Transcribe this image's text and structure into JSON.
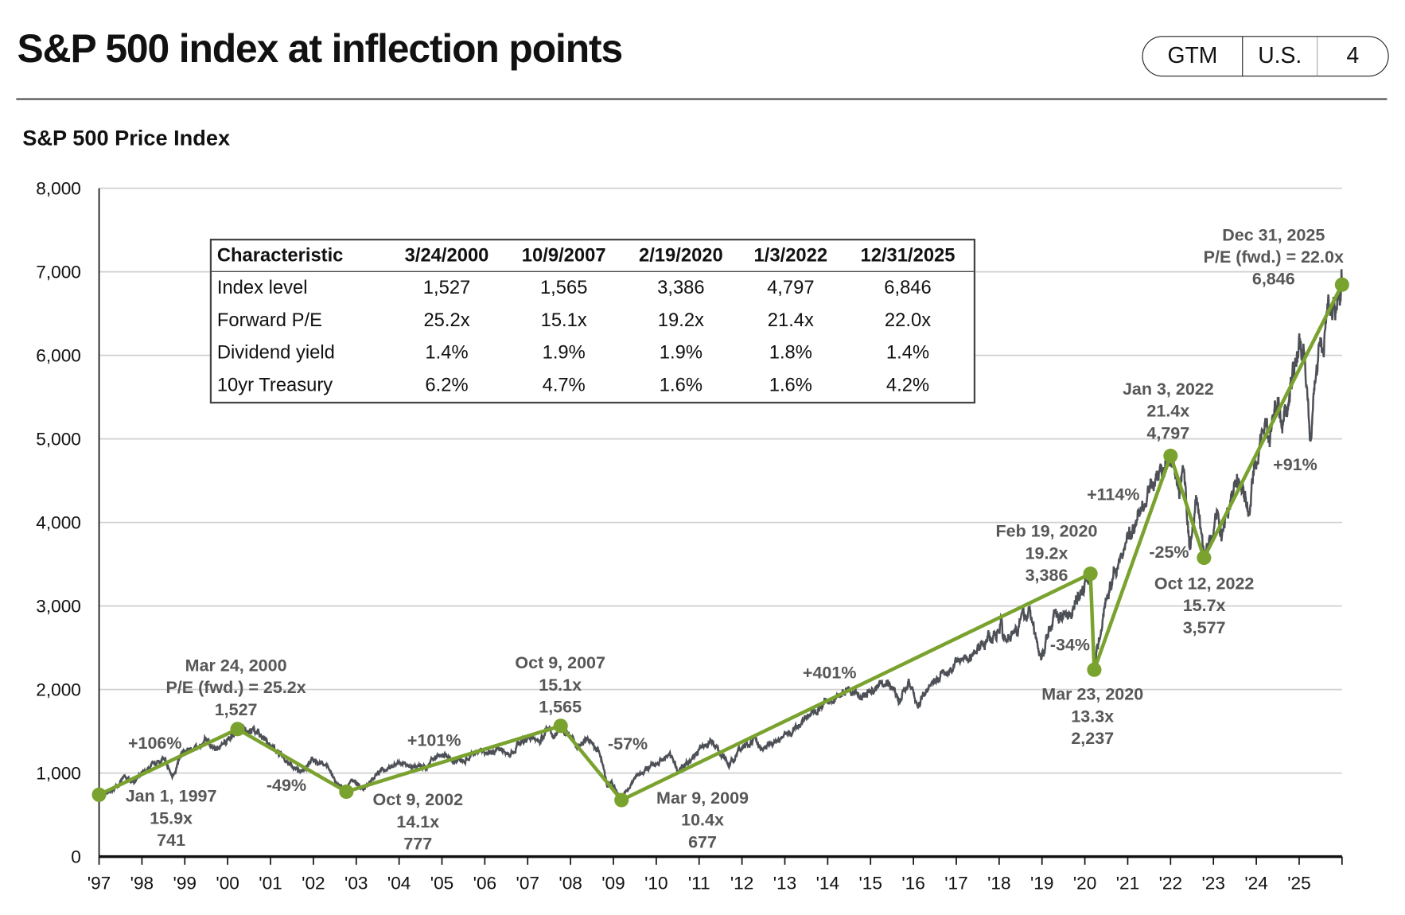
{
  "header": {
    "title": "S&P 500 index at inflection points",
    "badge": [
      "GTM",
      "U.S.",
      "4"
    ]
  },
  "colors": {
    "accent": "#7aa22e",
    "price_line": "#4d5056",
    "annotation_text": "#575757",
    "grid": "#d0d0d0"
  },
  "chart_data": {
    "type": "line",
    "title": "S&P 500 Price Index",
    "xlabel": "",
    "ylabel": "",
    "ylim": [
      0,
      8000
    ],
    "xlim": [
      1997,
      2026
    ],
    "y_ticks": [
      "0",
      "1,000",
      "2,000",
      "3,000",
      "4,000",
      "5,000",
      "6,000",
      "7,000",
      "8,000"
    ],
    "x_ticks": [
      "'97",
      "'98",
      "'99",
      "'00",
      "'01",
      "'02",
      "'03",
      "'04",
      "'05",
      "'06",
      "'07",
      "'08",
      "'09",
      "'10",
      "'11",
      "'12",
      "'13",
      "'14",
      "'15",
      "'16",
      "'17",
      "'18",
      "'19",
      "'20",
      "'21",
      "'22",
      "'23",
      "'24",
      "'25"
    ],
    "grid": true,
    "price_series": [
      [
        1997.0,
        741
      ],
      [
        1997.3,
        790
      ],
      [
        1997.6,
        950
      ],
      [
        1997.8,
        900
      ],
      [
        1998.5,
        1180
      ],
      [
        1998.7,
        960
      ],
      [
        1998.95,
        1230
      ],
      [
        1999.5,
        1380
      ],
      [
        1999.8,
        1300
      ],
      [
        2000.23,
        1527
      ],
      [
        2000.7,
        1500
      ],
      [
        2001.0,
        1320
      ],
      [
        2001.7,
        1000
      ],
      [
        2001.95,
        1150
      ],
      [
        2002.3,
        1100
      ],
      [
        2002.55,
        850
      ],
      [
        2002.77,
        777
      ],
      [
        2002.9,
        930
      ],
      [
        2003.2,
        800
      ],
      [
        2003.5,
        1000
      ],
      [
        2003.95,
        1110
      ],
      [
        2004.6,
        1080
      ],
      [
        2004.95,
        1210
      ],
      [
        2005.3,
        1150
      ],
      [
        2005.95,
        1250
      ],
      [
        2006.4,
        1300
      ],
      [
        2006.6,
        1230
      ],
      [
        2006.95,
        1420
      ],
      [
        2007.2,
        1400
      ],
      [
        2007.5,
        1540
      ],
      [
        2007.6,
        1430
      ],
      [
        2007.77,
        1565
      ],
      [
        2008.2,
        1300
      ],
      [
        2008.4,
        1420
      ],
      [
        2008.7,
        1200
      ],
      [
        2008.85,
        850
      ],
      [
        2008.95,
        900
      ],
      [
        2009.19,
        677
      ],
      [
        2009.5,
        950
      ],
      [
        2009.95,
        1115
      ],
      [
        2010.3,
        1210
      ],
      [
        2010.5,
        1030
      ],
      [
        2010.95,
        1260
      ],
      [
        2011.3,
        1360
      ],
      [
        2011.7,
        1100
      ],
      [
        2011.95,
        1260
      ],
      [
        2012.3,
        1410
      ],
      [
        2012.45,
        1280
      ],
      [
        2012.95,
        1430
      ],
      [
        2013.5,
        1650
      ],
      [
        2013.95,
        1850
      ],
      [
        2014.5,
        1980
      ],
      [
        2014.8,
        1870
      ],
      [
        2015.4,
        2120
      ],
      [
        2015.65,
        1870
      ],
      [
        2015.9,
        2090
      ],
      [
        2016.1,
        1830
      ],
      [
        2016.5,
        2100
      ],
      [
        2016.95,
        2260
      ],
      [
        2017.95,
        2690
      ],
      [
        2018.05,
        2870
      ],
      [
        2018.1,
        2600
      ],
      [
        2018.7,
        2930
      ],
      [
        2018.98,
        2350
      ],
      [
        2019.3,
        2940
      ],
      [
        2019.6,
        2850
      ],
      [
        2019.95,
        3230
      ],
      [
        2020.13,
        3386
      ],
      [
        2020.22,
        2237
      ],
      [
        2020.5,
        3100
      ],
      [
        2020.7,
        3400
      ],
      [
        2020.95,
        3750
      ],
      [
        2021.5,
        4350
      ],
      [
        2021.95,
        4790
      ],
      [
        2022.0,
        4797
      ],
      [
        2022.2,
        4300
      ],
      [
        2022.3,
        4600
      ],
      [
        2022.45,
        3670
      ],
      [
        2022.6,
        4280
      ],
      [
        2022.78,
        3577
      ],
      [
        2022.95,
        3850
      ],
      [
        2023.1,
        4130
      ],
      [
        2023.2,
        3850
      ],
      [
        2023.55,
        4580
      ],
      [
        2023.82,
        4120
      ],
      [
        2023.95,
        4770
      ],
      [
        2024.25,
        5250
      ],
      [
        2024.3,
        5000
      ],
      [
        2024.5,
        5500
      ],
      [
        2024.6,
        5200
      ],
      [
        2024.95,
        6050
      ],
      [
        2025.1,
        6140
      ],
      [
        2025.27,
        4980
      ],
      [
        2025.4,
        5800
      ],
      [
        2025.6,
        6300
      ],
      [
        2025.8,
        6700
      ],
      [
        2025.85,
        6550
      ],
      [
        2026.0,
        6846
      ]
    ],
    "inflection_points": [
      {
        "t": 1997.0,
        "value": 741,
        "lines": [
          "Jan 1, 1997",
          "15.9x",
          "741"
        ]
      },
      {
        "t": 2000.23,
        "value": 1527,
        "lines": [
          "Mar 24, 2000",
          "P/E (fwd.) = 25.2x",
          "1,527"
        ]
      },
      {
        "t": 2002.77,
        "value": 777,
        "lines": [
          "Oct 9, 2002",
          "14.1x",
          "777"
        ]
      },
      {
        "t": 2007.77,
        "value": 1565,
        "lines": [
          "Oct 9, 2007",
          "15.1x",
          "1,565"
        ]
      },
      {
        "t": 2009.19,
        "value": 677,
        "lines": [
          "Mar 9, 2009",
          "10.4x",
          "677"
        ]
      },
      {
        "t": 2020.13,
        "value": 3386,
        "lines": [
          "Feb 19, 2020",
          "19.2x",
          "3,386"
        ]
      },
      {
        "t": 2020.22,
        "value": 2237,
        "lines": [
          "Mar 23, 2020",
          "13.3x",
          "2,237"
        ]
      },
      {
        "t": 2022.0,
        "value": 4797,
        "lines": [
          "Jan 3, 2022",
          "21.4x",
          "4,797"
        ]
      },
      {
        "t": 2022.78,
        "value": 3577,
        "lines": [
          "Oct 12, 2022",
          "15.7x",
          "3,577"
        ]
      },
      {
        "t": 2026.0,
        "value": 6846,
        "lines": [
          "Dec 31, 2025",
          "P/E (fwd.) = 22.0x",
          "6,846"
        ]
      }
    ],
    "percent_changes": [
      "+106%",
      "-49%",
      "+101%",
      "-57%",
      "+401%",
      "-34%",
      "+114%",
      "-25%",
      "+91%"
    ]
  },
  "table": {
    "headers": [
      "Characteristic",
      "3/24/2000",
      "10/9/2007",
      "2/19/2020",
      "1/3/2022",
      "12/31/2025"
    ],
    "rows": [
      [
        "Index level",
        "1,527",
        "1,565",
        "3,386",
        "4,797",
        "6,846"
      ],
      [
        "Forward P/E",
        "25.2x",
        "15.1x",
        "19.2x",
        "21.4x",
        "22.0x"
      ],
      [
        "Dividend yield",
        "1.4%",
        "1.9%",
        "1.9%",
        "1.8%",
        "1.4%"
      ],
      [
        "10yr Treasury",
        "6.2%",
        "4.7%",
        "1.6%",
        "1.6%",
        "4.2%"
      ]
    ]
  }
}
